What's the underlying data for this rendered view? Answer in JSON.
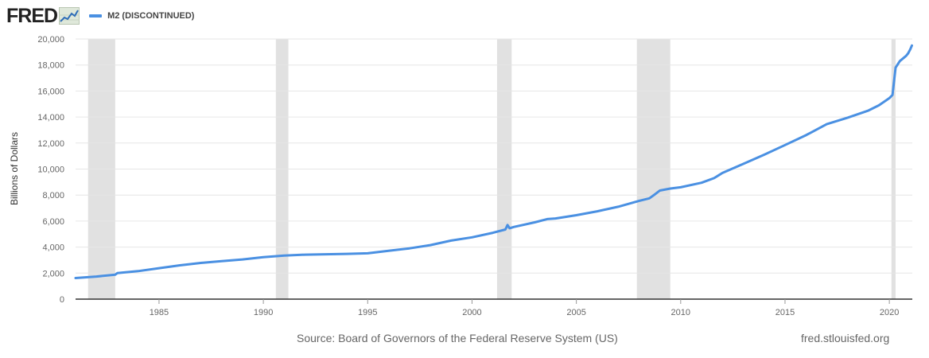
{
  "header": {
    "logo_text": "FRED",
    "logo_icon": "fred-line-graph-icon"
  },
  "footer": {
    "source": "Source: Board of Governors of the Federal Reserve System (US)",
    "site": "fred.stlouisfed.org"
  },
  "colors": {
    "series": "#4a90e2",
    "recession": "#e1e1e1",
    "grid": "#e6e6e6",
    "axis": "#333333"
  },
  "chart_data": {
    "type": "line",
    "title": "",
    "xlabel": "",
    "ylabel": "Billions of Dollars",
    "xlim": [
      1981.0,
      2021.1
    ],
    "ylim": [
      0,
      20000
    ],
    "yticks": [
      0,
      2000,
      4000,
      6000,
      8000,
      10000,
      12000,
      14000,
      16000,
      18000,
      20000
    ],
    "ytick_labels": [
      "0",
      "2,000",
      "4,000",
      "6,000",
      "8,000",
      "10,000",
      "12,000",
      "14,000",
      "16,000",
      "18,000",
      "20,000"
    ],
    "xticks": [
      1985,
      1990,
      1995,
      2000,
      2005,
      2010,
      2015,
      2020
    ],
    "xtick_labels": [
      "1985",
      "1990",
      "1995",
      "2000",
      "2005",
      "2010",
      "2015",
      "2020"
    ],
    "grid": true,
    "legend": "top-left",
    "recessions": [
      [
        1981.6,
        1982.9
      ],
      [
        1990.6,
        1991.2
      ],
      [
        2001.2,
        2001.9
      ],
      [
        2007.9,
        2009.5
      ],
      [
        2020.1,
        2020.3
      ]
    ],
    "series": [
      {
        "name": "M2 (DISCONTINUED)",
        "x": [
          1981.0,
          1982.0,
          1982.9,
          1983.0,
          1984.0,
          1985.0,
          1986.0,
          1987.0,
          1988.0,
          1989.0,
          1990.0,
          1991.0,
          1992.0,
          1993.0,
          1994.0,
          1995.0,
          1996.0,
          1997.0,
          1998.0,
          1999.0,
          2000.0,
          2001.0,
          2001.6,
          2001.7,
          2001.8,
          2002.0,
          2003.0,
          2003.6,
          2004.0,
          2005.0,
          2006.0,
          2007.0,
          2008.0,
          2008.5,
          2008.8,
          2009.0,
          2009.5,
          2010.0,
          2011.0,
          2011.6,
          2011.8,
          2012.0,
          2013.0,
          2014.0,
          2015.0,
          2016.0,
          2017.0,
          2018.0,
          2019.0,
          2019.5,
          2020.0,
          2020.15,
          2020.3,
          2020.5,
          2020.8,
          2020.9,
          2021.0,
          2021.08
        ],
        "values": [
          1620,
          1740,
          1880,
          2000,
          2150,
          2380,
          2600,
          2780,
          2920,
          3050,
          3230,
          3350,
          3420,
          3450,
          3480,
          3520,
          3720,
          3900,
          4150,
          4500,
          4750,
          5100,
          5350,
          5700,
          5450,
          5550,
          5900,
          6150,
          6200,
          6450,
          6750,
          7100,
          7550,
          7750,
          8100,
          8350,
          8500,
          8600,
          8950,
          9300,
          9500,
          9700,
          10400,
          11100,
          11850,
          12600,
          13450,
          13950,
          14500,
          14900,
          15450,
          15700,
          17800,
          18300,
          18700,
          18900,
          19200,
          19500
        ]
      }
    ]
  }
}
